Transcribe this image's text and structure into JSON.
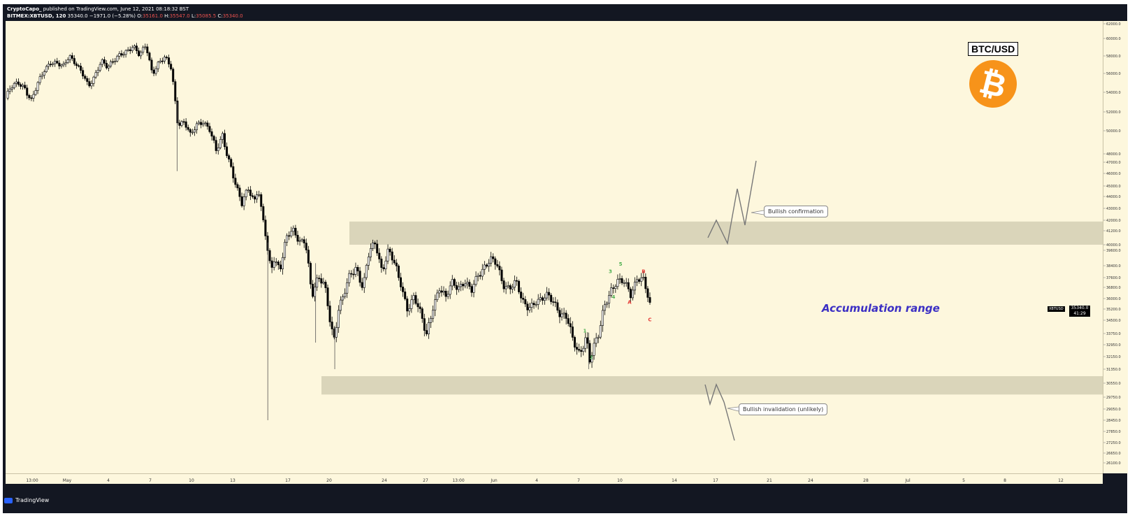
{
  "header": {
    "author": "CryptoCapo_",
    "published": "published on TradingView.com, June 12, 2021 08:18:32 BST",
    "symbol": "BITMEX:XBTUSD, 120",
    "last": "35340.0",
    "change": "−1971.0 (−5.28%)",
    "o_label": "O:",
    "o_value": "35161.0",
    "h_label": "H:",
    "h_value": "35547.0",
    "l_label": "L:",
    "l_value": "35085.5",
    "c_label": "C:",
    "c_value": "35340.0"
  },
  "badge": {
    "pair": "BTC/USD",
    "logo_glyph": "₿",
    "logo_color": "#f7931a"
  },
  "annotations": {
    "accumulation": "Accumulation range",
    "bullish_confirmation": "Bullish confirmation",
    "bullish_invalidation": "Bullish invalidation (unlikely)",
    "price_tag_symbol": "XBTUSD",
    "price_tag_value": "35340.0",
    "price_tag_timer": "41:29"
  },
  "footer": {
    "brand": "TradingView"
  },
  "colors": {
    "background": "#fdf7dd",
    "zone": "#d6d0b6",
    "candle": "#000000",
    "wave_green": "#4caf50",
    "wave_red": "#e53935",
    "accumulation_text": "#3b2fc4"
  },
  "chart_data": {
    "type": "candlestick",
    "timeframe": "120",
    "y_ticks": [
      62000,
      60000,
      58000,
      56000,
      54000,
      52000,
      50000,
      48000,
      47000,
      46000,
      45000,
      44000,
      43000,
      42000,
      41200,
      40000,
      39600,
      38400,
      37600,
      36800,
      36000,
      35200,
      34500,
      33750,
      32950,
      32150,
      31350,
      30550,
      29750,
      29050,
      28450,
      27850,
      27250,
      26650,
      26100
    ],
    "x_ticks": [
      "13:00",
      "May",
      "4",
      "7",
      "10",
      "13",
      "17",
      "20",
      "24",
      "27",
      "13:00",
      "Jun",
      "4",
      "7",
      "10",
      "14",
      "17",
      "21",
      "24",
      "28",
      "Jul",
      "5",
      "8",
      "12"
    ],
    "price_path": [
      [
        0,
        53400
      ],
      [
        0.8,
        54400
      ],
      [
        2,
        55000
      ],
      [
        3,
        54600
      ],
      [
        4,
        53100
      ],
      [
        5,
        54700
      ],
      [
        6,
        56300
      ],
      [
        7,
        57400
      ],
      [
        8,
        57200
      ],
      [
        9,
        56600
      ],
      [
        10,
        58000
      ],
      [
        11,
        57300
      ],
      [
        12,
        56100
      ],
      [
        13,
        54400
      ],
      [
        14,
        55700
      ],
      [
        15,
        57700
      ],
      [
        16,
        56700
      ],
      [
        17,
        57300
      ],
      [
        18,
        58200
      ],
      [
        19,
        58700
      ],
      [
        20,
        59100
      ],
      [
        21,
        57900
      ],
      [
        22,
        59300
      ],
      [
        23,
        56100
      ],
      [
        24,
        57200
      ],
      [
        25,
        57700
      ],
      [
        26,
        56600
      ],
      [
        26.6,
        53100
      ],
      [
        27,
        50800
      ],
      [
        28,
        50900
      ],
      [
        29,
        49400
      ],
      [
        30,
        50700
      ],
      [
        31,
        51100
      ],
      [
        32,
        50100
      ],
      [
        33,
        48100
      ],
      [
        34,
        49600
      ],
      [
        35,
        47400
      ],
      [
        36,
        45200
      ],
      [
        37,
        43200
      ],
      [
        38,
        44800
      ],
      [
        39,
        43700
      ],
      [
        39.6,
        44900
      ],
      [
        40,
        43100
      ],
      [
        40.8,
        40600
      ],
      [
        41,
        39600
      ],
      [
        41.6,
        37900
      ],
      [
        42,
        39000
      ],
      [
        43,
        38300
      ],
      [
        44,
        40600
      ],
      [
        45,
        41100
      ],
      [
        46,
        40300
      ],
      [
        47,
        40500
      ],
      [
        47.5,
        38400
      ],
      [
        48,
        36100
      ],
      [
        49,
        37400
      ],
      [
        50,
        37100
      ],
      [
        51,
        34300
      ],
      [
        51.6,
        33300
      ],
      [
        52,
        34900
      ],
      [
        53,
        36100
      ],
      [
        54,
        37900
      ],
      [
        55,
        38400
      ],
      [
        56,
        36700
      ],
      [
        57,
        39400
      ],
      [
        58,
        40200
      ],
      [
        59,
        38100
      ],
      [
        60,
        39600
      ],
      [
        61,
        38400
      ],
      [
        62,
        37000
      ],
      [
        63,
        35300
      ],
      [
        64,
        36100
      ],
      [
        65,
        34800
      ],
      [
        66,
        33700
      ],
      [
        67,
        35500
      ],
      [
        68,
        36700
      ],
      [
        69,
        35900
      ],
      [
        70,
        37300
      ],
      [
        71,
        36900
      ],
      [
        72,
        37200
      ],
      [
        73,
        36400
      ],
      [
        74,
        37800
      ],
      [
        75,
        38400
      ],
      [
        76,
        38900
      ],
      [
        77,
        38400
      ],
      [
        78,
        37000
      ],
      [
        79,
        36900
      ],
      [
        80,
        37300
      ],
      [
        81,
        35600
      ],
      [
        82,
        35300
      ],
      [
        83,
        35900
      ],
      [
        84,
        35900
      ],
      [
        85,
        36100
      ],
      [
        86,
        35700
      ],
      [
        87,
        35000
      ],
      [
        88,
        34700
      ],
      [
        89,
        33000
      ],
      [
        90,
        32300
      ],
      [
        91,
        33700
      ],
      [
        91.6,
        31900
      ],
      [
        92,
        32500
      ],
      [
        93,
        33600
      ],
      [
        94,
        35700
      ],
      [
        95,
        36800
      ],
      [
        96,
        37300
      ],
      [
        97,
        37100
      ],
      [
        98,
        36300
      ],
      [
        99,
        37700
      ],
      [
        100,
        37400
      ],
      [
        101,
        35340
      ]
    ],
    "price_path_x_range": [
      0,
      101
    ],
    "zones": [
      {
        "name": "resistance",
        "y0": 40000,
        "y1": 41900
      },
      {
        "name": "support",
        "y0": 29900,
        "y1": 30950
      }
    ],
    "wave_labels": [
      {
        "label": "1",
        "color": "green",
        "x": 90.8,
        "y": 33800
      },
      {
        "label": "2",
        "color": "green",
        "x": 91.8,
        "y": 32000
      },
      {
        "label": "3",
        "color": "green",
        "x": 94.8,
        "y": 37900
      },
      {
        "label": "4",
        "color": "green",
        "x": 95.3,
        "y": 36000
      },
      {
        "label": "5",
        "color": "green",
        "x": 96.4,
        "y": 38400
      },
      {
        "label": "A",
        "color": "red",
        "x": 97.8,
        "y": 35600
      },
      {
        "label": "B",
        "color": "red",
        "x": 100,
        "y": 37900
      },
      {
        "label": "C",
        "color": "red",
        "x": 101,
        "y": 34450
      }
    ]
  }
}
